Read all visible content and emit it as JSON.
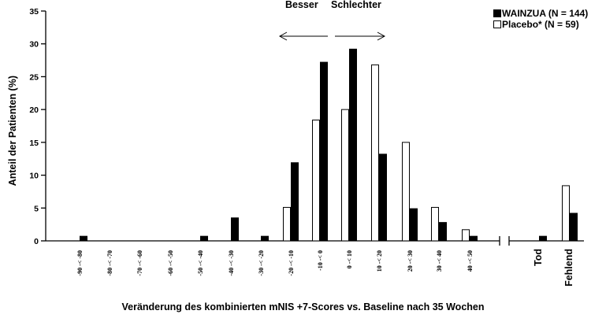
{
  "chart_data": {
    "type": "bar",
    "xlabel": "Veränderung des kombinierten mNIS +7-Scores vs. Baseline nach 35 Wochen",
    "ylabel": "Anteil der Patienten (%)",
    "ylim": [
      0,
      35
    ],
    "yticks": [
      0,
      5,
      10,
      15,
      20,
      25,
      30,
      35
    ],
    "categories": [
      "-90 -< -80",
      "-80 -< -70",
      "-70 -< -60",
      "-60 -< -50",
      "-50 -< -40",
      "-40 -< -30",
      "-30 -< -20",
      "-20 -< -10",
      "-10 -< 0",
      "0 -< 10",
      "10 -< 20",
      "20 -< 30",
      "30 -< 40",
      "40 -< 50",
      "Tod",
      "Fehlend"
    ],
    "series": [
      {
        "name": "Placebo* (N = 59)",
        "color": "#ffffff",
        "values": [
          0,
          0,
          0,
          0,
          0,
          0,
          0,
          5.1,
          18.4,
          20.0,
          26.8,
          15.0,
          5.1,
          1.7,
          0,
          8.4
        ]
      },
      {
        "name": "WAINZUA (N = 144)",
        "color": "#000000",
        "values": [
          0.7,
          0,
          0,
          0,
          0.7,
          3.5,
          0.7,
          11.9,
          27.2,
          29.2,
          13.2,
          4.9,
          2.8,
          0.7,
          0.7,
          4.2
        ]
      }
    ],
    "annotations": {
      "left": "Besser",
      "right": "Schlechter"
    },
    "legend_position": "top-right",
    "grid": false
  }
}
